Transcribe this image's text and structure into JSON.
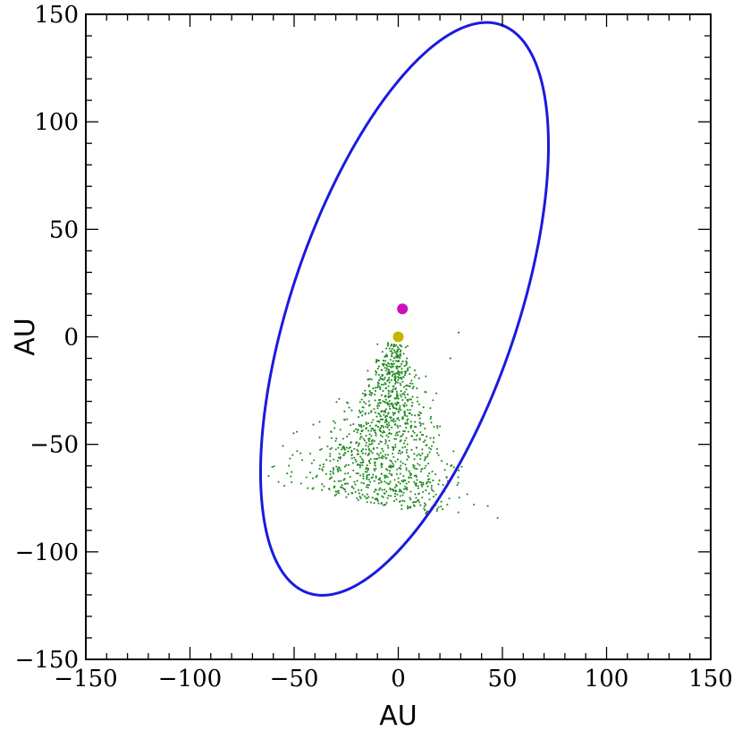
{
  "chart_data": {
    "type": "scatter",
    "title": "",
    "xlabel": "AU",
    "ylabel": "AU",
    "xlim": [
      -150,
      150
    ],
    "ylim": [
      -150,
      150
    ],
    "x_ticks": [
      -150,
      -100,
      -50,
      0,
      50,
      100,
      150
    ],
    "y_ticks": [
      -150,
      -100,
      -50,
      0,
      50,
      100,
      150
    ],
    "x_tick_labels": [
      "−150",
      "−100",
      "−50",
      "0",
      "50",
      "100",
      "150"
    ],
    "y_tick_labels": [
      "−150",
      "−100",
      "−50",
      "0",
      "50",
      "100",
      "150"
    ],
    "minor_tick_step": 10,
    "grid": false,
    "legend": "none",
    "orbit": {
      "type": "ellipse",
      "color": "#1a1adf",
      "center": [
        3,
        13
      ],
      "semi_major": 140,
      "semi_minor": 54,
      "angle_deg": 70.5
    },
    "points": [
      {
        "name": "magenta-body",
        "x": 2,
        "y": 13,
        "color": "#cc11bb"
      },
      {
        "name": "yellow-body",
        "x": 0,
        "y": 0,
        "color": "#c8b400"
      }
    ],
    "cloud": {
      "color": "#1f8a1f",
      "count": 1200,
      "apex": [
        -1,
        -3
      ],
      "centroid": [
        -8,
        -40
      ],
      "stragglers": [
        [
          29,
          2
        ],
        [
          25,
          -10
        ],
        [
          17,
          -47
        ],
        [
          -27,
          -69
        ],
        [
          -18,
          -75
        ]
      ]
    }
  }
}
